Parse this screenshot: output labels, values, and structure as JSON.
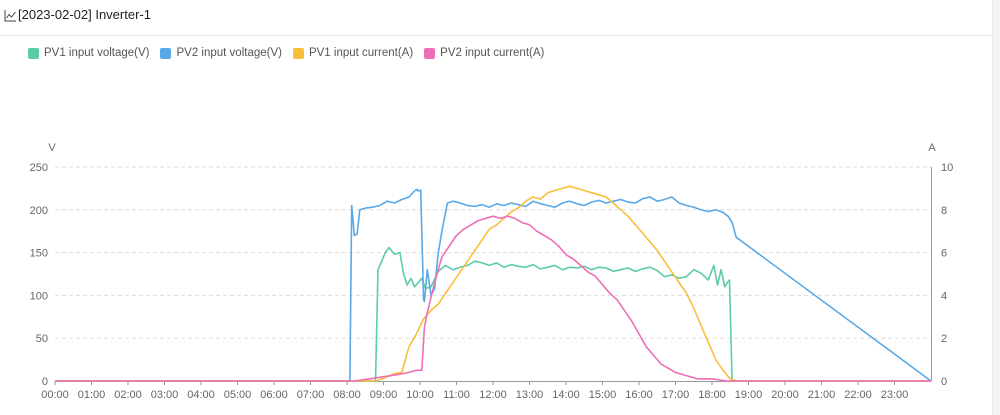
{
  "header": {
    "title": "[2023-02-02] Inverter-1",
    "icon": "line-chart-icon"
  },
  "colors": {
    "pv1_voltage": "#5ccca6",
    "pv2_voltage": "#5aa9e6",
    "pv1_current": "#f8be3c",
    "pv2_current": "#ef6fb6",
    "grid": "#dddddd",
    "axis": "#999999"
  },
  "chart_data": {
    "type": "line",
    "left_axis": {
      "name": "V",
      "min": 0,
      "max": 250,
      "ticks": [
        "0",
        "50",
        "100",
        "150",
        "200",
        "250"
      ]
    },
    "right_axis": {
      "name": "A",
      "min": 0,
      "max": 10,
      "ticks": [
        "0",
        "2",
        "4",
        "6",
        "8",
        "10"
      ]
    },
    "x_min": 0,
    "x_max": 24,
    "x_ticks": [
      "00:00",
      "01:00",
      "02:00",
      "03:00",
      "04:00",
      "05:00",
      "06:00",
      "07:00",
      "08:00",
      "09:00",
      "10:00",
      "11:00",
      "12:00",
      "13:00",
      "14:00",
      "15:00",
      "16:00",
      "17:00",
      "18:00",
      "19:00",
      "20:00",
      "21:00",
      "22:00",
      "23:00"
    ],
    "grid": true,
    "legend_position": "top-left",
    "series": [
      {
        "name": "PV1 input voltage(V)",
        "axis": "left",
        "color_key": "pv1_voltage",
        "x": [
          0,
          8.78,
          8.85,
          8.95,
          9.05,
          9.15,
          9.3,
          9.45,
          9.55,
          9.65,
          9.75,
          9.85,
          9.95,
          10.05,
          10.15,
          10.3,
          10.5,
          10.7,
          10.9,
          11.1,
          11.3,
          11.5,
          11.7,
          11.9,
          12.1,
          12.3,
          12.5,
          12.7,
          12.9,
          13.1,
          13.3,
          13.5,
          13.7,
          13.9,
          14.1,
          14.3,
          14.5,
          14.7,
          14.9,
          15.1,
          15.3,
          15.5,
          15.7,
          15.9,
          16.1,
          16.3,
          16.5,
          16.7,
          16.9,
          17.1,
          17.3,
          17.5,
          17.7,
          17.9,
          18.05,
          18.15,
          18.25,
          18.35,
          18.42,
          18.48,
          18.55,
          24
        ],
        "y": [
          0,
          0,
          130,
          140,
          150,
          156,
          148,
          150,
          125,
          112,
          120,
          110,
          115,
          120,
          108,
          110,
          128,
          135,
          130,
          133,
          135,
          140,
          138,
          135,
          138,
          133,
          136,
          134,
          133,
          136,
          131,
          133,
          135,
          130,
          133,
          132,
          134,
          130,
          133,
          132,
          128,
          130,
          132,
          128,
          131,
          133,
          129,
          122,
          124,
          120,
          122,
          130,
          126,
          118,
          135,
          112,
          130,
          110,
          115,
          118,
          0,
          0
        ]
      },
      {
        "name": "PV2 input voltage(V)",
        "axis": "left",
        "color_key": "pv2_voltage",
        "x": [
          0,
          8.08,
          8.13,
          8.2,
          8.28,
          8.35,
          8.5,
          8.7,
          8.9,
          9.1,
          9.3,
          9.5,
          9.7,
          9.85,
          9.92,
          9.95,
          10.02,
          10.1,
          10.12,
          10.2,
          10.3,
          10.4,
          10.5,
          10.6,
          10.75,
          10.9,
          11.1,
          11.3,
          11.5,
          11.7,
          11.9,
          12.1,
          12.3,
          12.5,
          12.7,
          12.9,
          13.1,
          13.3,
          13.5,
          13.7,
          13.9,
          14.1,
          14.3,
          14.5,
          14.7,
          14.9,
          15.1,
          15.3,
          15.5,
          15.7,
          15.9,
          16.1,
          16.3,
          16.5,
          16.7,
          16.9,
          17.1,
          17.3,
          17.5,
          17.7,
          17.9,
          18.1,
          18.3,
          18.45,
          18.55,
          18.62,
          18.66,
          24
        ],
        "y": [
          0,
          0,
          205,
          170,
          172,
          200,
          202,
          203,
          205,
          210,
          208,
          212,
          215,
          222,
          224,
          222,
          223,
          95,
          93,
          130,
          100,
          108,
          150,
          175,
          208,
          210,
          208,
          205,
          204,
          206,
          203,
          207,
          205,
          208,
          206,
          204,
          210,
          207,
          205,
          203,
          208,
          210,
          207,
          205,
          209,
          211,
          208,
          210,
          212,
          209,
          208,
          213,
          215,
          210,
          212,
          215,
          208,
          205,
          203,
          200,
          198,
          200,
          197,
          192,
          185,
          175,
          168,
          0
        ]
      },
      {
        "name": "PV1 input current(A)",
        "axis": "right",
        "color_key": "pv1_current",
        "x": [
          0,
          8.8,
          8.95,
          9.1,
          9.3,
          9.5,
          9.7,
          9.9,
          10.1,
          10.3,
          10.5,
          10.7,
          10.9,
          11.1,
          11.3,
          11.5,
          11.7,
          11.9,
          12.1,
          12.3,
          12.5,
          12.7,
          12.9,
          13.1,
          13.3,
          13.5,
          13.7,
          13.9,
          14.1,
          14.3,
          14.5,
          14.7,
          14.9,
          15.1,
          15.3,
          15.5,
          15.7,
          15.9,
          16.1,
          16.3,
          16.5,
          16.7,
          16.9,
          17.1,
          17.3,
          17.5,
          17.7,
          17.9,
          18.1,
          18.3,
          18.5,
          18.7,
          18.9,
          24
        ],
        "y": [
          0,
          0,
          0.1,
          0.2,
          0.35,
          0.4,
          1.6,
          2.2,
          2.9,
          3.3,
          3.6,
          4.1,
          4.6,
          5.1,
          5.6,
          6.1,
          6.6,
          7.1,
          7.3,
          7.6,
          7.9,
          8.1,
          8.4,
          8.6,
          8.5,
          8.8,
          8.9,
          9.0,
          9.1,
          9.0,
          8.9,
          8.8,
          8.7,
          8.6,
          8.3,
          8.0,
          7.7,
          7.3,
          6.9,
          6.5,
          6.1,
          5.6,
          5.1,
          4.6,
          4.1,
          3.4,
          2.6,
          1.8,
          1.0,
          0.5,
          0.1,
          0,
          0,
          0
        ]
      },
      {
        "name": "PV2 input current(A)",
        "axis": "right",
        "color_key": "pv2_current",
        "x": [
          0,
          8.2,
          8.6,
          9.0,
          9.4,
          9.7,
          9.9,
          10.05,
          10.12,
          10.2,
          10.4,
          10.6,
          10.8,
          11.0,
          11.2,
          11.4,
          11.6,
          11.8,
          12.0,
          12.2,
          12.4,
          12.6,
          12.8,
          13.0,
          13.2,
          13.4,
          13.6,
          13.8,
          14.0,
          14.2,
          14.4,
          14.6,
          14.8,
          15.0,
          15.2,
          15.4,
          15.6,
          15.8,
          16.0,
          16.2,
          16.4,
          16.6,
          16.8,
          17.0,
          17.2,
          17.4,
          17.6,
          17.8,
          18.0,
          18.2,
          18.4,
          18.6,
          24
        ],
        "y": [
          0,
          0,
          0.1,
          0.2,
          0.3,
          0.4,
          0.5,
          0.5,
          2.5,
          3.2,
          4.6,
          5.8,
          6.3,
          6.8,
          7.1,
          7.3,
          7.5,
          7.6,
          7.7,
          7.6,
          7.7,
          7.6,
          7.4,
          7.3,
          7.0,
          6.8,
          6.6,
          6.3,
          5.9,
          5.7,
          5.4,
          5.1,
          4.9,
          4.5,
          4.1,
          3.8,
          3.3,
          2.8,
          2.2,
          1.6,
          1.2,
          0.8,
          0.6,
          0.4,
          0.3,
          0.2,
          0.1,
          0.1,
          0.1,
          0.05,
          0,
          0,
          0
        ]
      }
    ]
  }
}
